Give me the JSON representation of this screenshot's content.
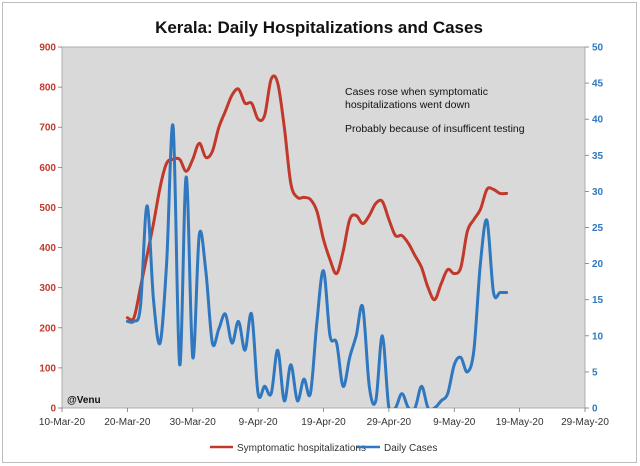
{
  "chart_data": {
    "type": "line",
    "title": "Kerala: Daily Hospitalizations and Cases",
    "x_ticks": [
      "10-Mar-20",
      "20-Mar-20",
      "30-Mar-20",
      "9-Apr-20",
      "19-Apr-20",
      "29-Apr-20",
      "9-May-20",
      "19-May-20",
      "29-May-20"
    ],
    "x_range": [
      "2020-03-10",
      "2020-05-29"
    ],
    "y_left": {
      "label": "",
      "ticks": [
        0,
        100,
        200,
        300,
        400,
        500,
        600,
        700,
        800,
        900
      ],
      "range": [
        0,
        900
      ],
      "color": "#c0392b"
    },
    "y_right": {
      "label": "",
      "ticks": [
        0,
        5,
        10,
        15,
        20,
        25,
        30,
        35,
        40,
        45,
        50
      ],
      "range": [
        0,
        50
      ],
      "color": "#2f78c0"
    },
    "annotations": [
      "Cases rose when symptomatic",
      "hospitalizations went down",
      "Probably because of insufficent testing"
    ],
    "watermark": "@Venu",
    "legend_position": "bottom",
    "plot_background": "#d9d9d9",
    "grid": false,
    "series": [
      {
        "name": "Symptomatic hospitalizations",
        "axis": "left",
        "color": "#c0392b",
        "x": [
          "2020-03-20",
          "2020-03-21",
          "2020-03-22",
          "2020-03-23",
          "2020-03-24",
          "2020-03-25",
          "2020-03-26",
          "2020-03-27",
          "2020-03-28",
          "2020-03-29",
          "2020-03-30",
          "2020-03-31",
          "2020-04-01",
          "2020-04-02",
          "2020-04-03",
          "2020-04-04",
          "2020-04-05",
          "2020-04-06",
          "2020-04-07",
          "2020-04-08",
          "2020-04-09",
          "2020-04-10",
          "2020-04-11",
          "2020-04-12",
          "2020-04-13",
          "2020-04-14",
          "2020-04-15",
          "2020-04-16",
          "2020-04-17",
          "2020-04-18",
          "2020-04-19",
          "2020-04-20",
          "2020-04-21",
          "2020-04-22",
          "2020-04-23",
          "2020-04-24",
          "2020-04-25",
          "2020-04-26",
          "2020-04-27",
          "2020-04-28",
          "2020-04-29",
          "2020-04-30",
          "2020-05-01",
          "2020-05-02",
          "2020-05-03",
          "2020-05-04",
          "2020-05-05",
          "2020-05-06",
          "2020-05-07",
          "2020-05-08",
          "2020-05-09",
          "2020-05-10",
          "2020-05-11",
          "2020-05-12",
          "2020-05-13",
          "2020-05-14",
          "2020-05-15",
          "2020-05-16",
          "2020-05-17"
        ],
        "values": [
          225,
          225,
          300,
          380,
          460,
          550,
          610,
          620,
          620,
          590,
          620,
          660,
          625,
          640,
          700,
          740,
          780,
          795,
          760,
          760,
          720,
          730,
          820,
          810,
          700,
          560,
          525,
          525,
          520,
          490,
          420,
          370,
          335,
          390,
          470,
          480,
          460,
          480,
          510,
          515,
          470,
          430,
          430,
          410,
          380,
          350,
          300,
          270,
          310,
          345,
          335,
          350,
          440,
          470,
          495,
          545,
          545,
          535,
          535
        ]
      },
      {
        "name": "Daily Cases",
        "axis": "right",
        "color": "#2f78c0",
        "x": [
          "2020-03-20",
          "2020-03-21",
          "2020-03-22",
          "2020-03-23",
          "2020-03-24",
          "2020-03-25",
          "2020-03-26",
          "2020-03-27",
          "2020-03-28",
          "2020-03-29",
          "2020-03-30",
          "2020-03-31",
          "2020-04-01",
          "2020-04-02",
          "2020-04-03",
          "2020-04-04",
          "2020-04-05",
          "2020-04-06",
          "2020-04-07",
          "2020-04-08",
          "2020-04-09",
          "2020-04-10",
          "2020-04-11",
          "2020-04-12",
          "2020-04-13",
          "2020-04-14",
          "2020-04-15",
          "2020-04-16",
          "2020-04-17",
          "2020-04-18",
          "2020-04-19",
          "2020-04-20",
          "2020-04-21",
          "2020-04-22",
          "2020-04-23",
          "2020-04-24",
          "2020-04-25",
          "2020-04-26",
          "2020-04-27",
          "2020-04-28",
          "2020-04-29",
          "2020-04-30",
          "2020-05-01",
          "2020-05-02",
          "2020-05-03",
          "2020-05-04",
          "2020-05-05",
          "2020-05-06",
          "2020-05-07",
          "2020-05-08",
          "2020-05-09",
          "2020-05-10",
          "2020-05-11",
          "2020-05-12",
          "2020-05-13",
          "2020-05-14",
          "2020-05-15",
          "2020-05-16",
          "2020-05-17"
        ],
        "values": [
          12,
          12,
          14,
          28,
          15,
          9,
          20,
          39,
          6,
          32,
          7,
          24,
          19,
          9,
          11,
          13,
          9,
          12,
          8,
          13,
          2,
          3,
          2,
          8,
          1,
          6,
          1,
          4,
          2,
          12,
          19,
          10,
          9,
          3,
          7,
          10,
          14,
          3,
          1,
          10,
          0,
          0,
          2,
          0,
          0,
          3,
          0,
          0,
          1,
          2,
          6,
          7,
          5,
          8,
          20,
          26,
          16,
          16,
          16
        ]
      }
    ]
  }
}
